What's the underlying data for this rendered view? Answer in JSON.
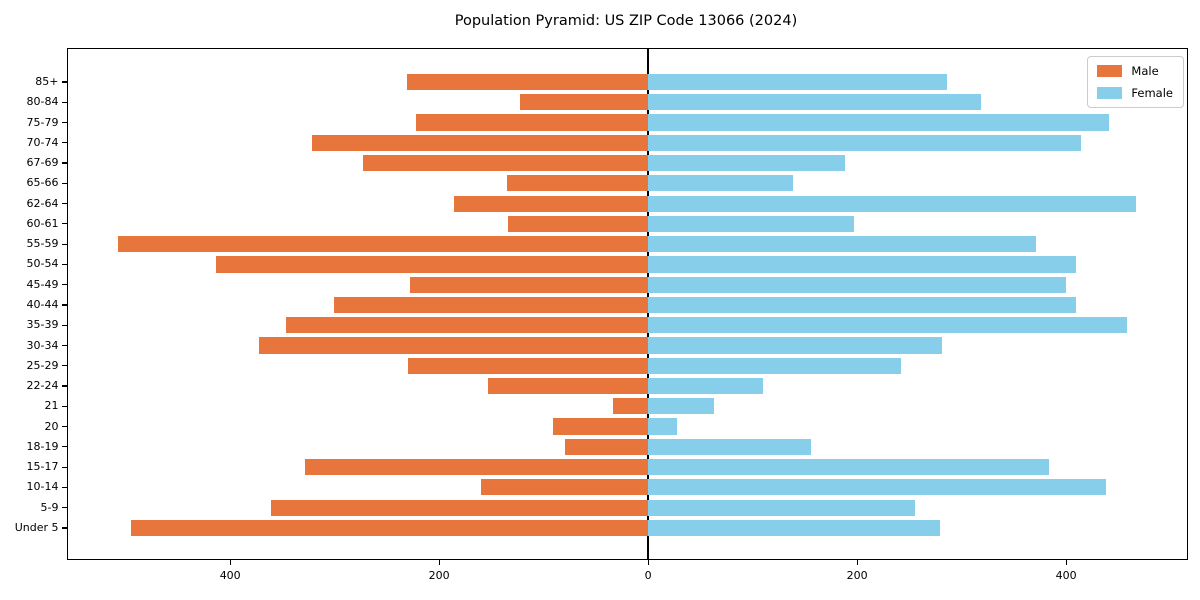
{
  "page": {
    "title": "Population Pyramid: US ZIP Code 13066 (2024)"
  },
  "legend": {
    "items": [
      {
        "label": "Male",
        "color": "#e8763c"
      },
      {
        "label": "Female",
        "color": "#87ceeb"
      }
    ]
  },
  "chart_data": {
    "type": "bar",
    "variant": "population-pyramid",
    "title": "Population Pyramid: US ZIP Code 13066 (2024)",
    "categories_top_to_bottom": [
      "85+",
      "80-84",
      "75-79",
      "70-74",
      "67-69",
      "65-66",
      "62-64",
      "60-61",
      "55-59",
      "50-54",
      "45-49",
      "40-44",
      "35-39",
      "30-34",
      "25-29",
      "22-24",
      "21",
      "20",
      "18-19",
      "15-17",
      "10-14",
      "5-9",
      "Under 5"
    ],
    "series": [
      {
        "name": "Male",
        "side": "left",
        "color": "#e8763c",
        "values": [
          231,
          123,
          222,
          322,
          273,
          135,
          186,
          134,
          507,
          414,
          228,
          301,
          347,
          372,
          230,
          153,
          34,
          91,
          80,
          328,
          160,
          361,
          495
        ]
      },
      {
        "name": "Female",
        "side": "right",
        "color": "#87ceeb",
        "values": [
          286,
          319,
          441,
          414,
          188,
          139,
          467,
          197,
          371,
          409,
          400,
          409,
          458,
          281,
          242,
          110,
          63,
          28,
          156,
          384,
          438,
          255,
          279
        ]
      }
    ],
    "x_tick_values": [
      -400,
      -200,
      0,
      200,
      400
    ],
    "x_tick_labels": [
      "400",
      "200",
      "0",
      "200",
      "400"
    ],
    "xlim": [
      -555.7,
      515.7
    ],
    "zero_line": true,
    "grid": false,
    "legend_position": "upper right"
  }
}
